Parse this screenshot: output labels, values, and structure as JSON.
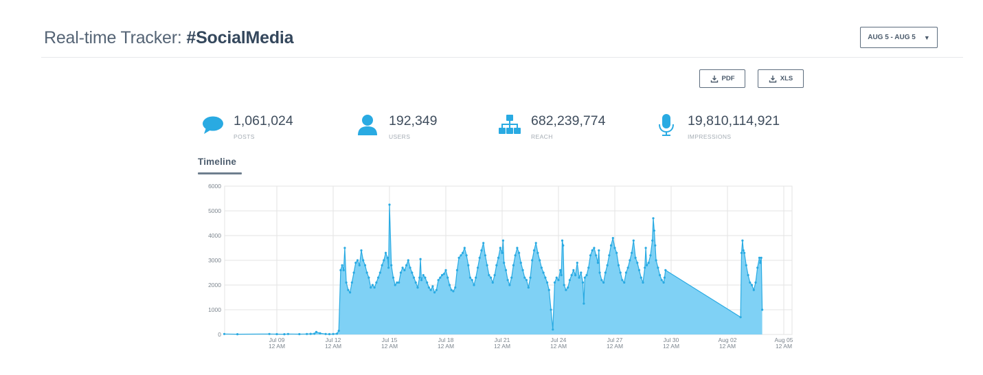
{
  "header": {
    "title_prefix": "Real-time Tracker:",
    "title_hashtag": "#SocialMedia",
    "date_range": "AUG 5 - AUG 5",
    "date_caret": "▼"
  },
  "toolbar": {
    "pdf_label": "PDF",
    "xls_label": "XLS"
  },
  "stats": [
    {
      "icon": "speech-bubble-icon",
      "value": "1,061,024",
      "label": "POSTS"
    },
    {
      "icon": "user-icon",
      "value": "192,349",
      "label": "USERS"
    },
    {
      "icon": "sitemap-icon",
      "value": "682,239,774",
      "label": "REACH"
    },
    {
      "icon": "microphone-icon",
      "value": "19,810,114,921",
      "label": "IMPRESSIONS"
    }
  ],
  "tabs": [
    {
      "label": "Timeline",
      "active": true
    }
  ],
  "colors": {
    "accent": "#29aae2",
    "fill": "#7fd1f5",
    "grid": "#e3e3e3",
    "text_dark": "#34475c"
  },
  "chart_data": {
    "type": "area",
    "title": "Timeline",
    "xlabel": "",
    "ylabel": "",
    "ylim": [
      0,
      6000
    ],
    "yticks": [
      0,
      1000,
      2000,
      3000,
      4000,
      5000,
      6000
    ],
    "xticks": [
      {
        "label": "Jul 09",
        "sub": "12 AM",
        "day": 3
      },
      {
        "label": "Jul 12",
        "sub": "12 AM",
        "day": 6
      },
      {
        "label": "Jul 15",
        "sub": "12 AM",
        "day": 9
      },
      {
        "label": "Jul 18",
        "sub": "12 AM",
        "day": 12
      },
      {
        "label": "Jul 21",
        "sub": "12 AM",
        "day": 15
      },
      {
        "label": "Jul 24",
        "sub": "12 AM",
        "day": 18
      },
      {
        "label": "Jul 27",
        "sub": "12 AM",
        "day": 21
      },
      {
        "label": "Jul 30",
        "sub": "12 AM",
        "day": 24
      },
      {
        "label": "Aug 02",
        "sub": "12 AM",
        "day": 27
      },
      {
        "label": "Aug 05",
        "sub": "12 AM",
        "day": 30
      }
    ],
    "x_unit": "days since Jul 06 12 AM",
    "grid": true,
    "legend": "none",
    "series": [
      {
        "name": "Posts",
        "points": [
          [
            0.2,
            20
          ],
          [
            0.9,
            10
          ],
          [
            2.6,
            20
          ],
          [
            3.0,
            15
          ],
          [
            3.4,
            10
          ],
          [
            3.6,
            20
          ],
          [
            4.2,
            15
          ],
          [
            4.6,
            20
          ],
          [
            4.8,
            25
          ],
          [
            5.0,
            30
          ],
          [
            5.1,
            100
          ],
          [
            5.3,
            50
          ],
          [
            5.6,
            20
          ],
          [
            5.8,
            15
          ],
          [
            6.0,
            20
          ],
          [
            6.2,
            30
          ],
          [
            6.3,
            150
          ],
          [
            6.4,
            2600
          ],
          [
            6.48,
            2800
          ],
          [
            6.56,
            2600
          ],
          [
            6.62,
            3500
          ],
          [
            6.7,
            2100
          ],
          [
            6.8,
            1800
          ],
          [
            6.9,
            1700
          ],
          [
            7.0,
            2100
          ],
          [
            7.1,
            2500
          ],
          [
            7.2,
            2900
          ],
          [
            7.3,
            3000
          ],
          [
            7.4,
            2800
          ],
          [
            7.5,
            3400
          ],
          [
            7.6,
            3000
          ],
          [
            7.7,
            2800
          ],
          [
            7.8,
            2500
          ],
          [
            7.9,
            2300
          ],
          [
            8.0,
            1900
          ],
          [
            8.1,
            2000
          ],
          [
            8.2,
            1900
          ],
          [
            8.3,
            2100
          ],
          [
            8.4,
            2300
          ],
          [
            8.5,
            2500
          ],
          [
            8.6,
            2800
          ],
          [
            8.7,
            3000
          ],
          [
            8.8,
            3300
          ],
          [
            8.9,
            3100
          ],
          [
            8.95,
            2700
          ],
          [
            9.0,
            5250
          ],
          [
            9.1,
            2800
          ],
          [
            9.2,
            2300
          ],
          [
            9.3,
            2000
          ],
          [
            9.4,
            2100
          ],
          [
            9.5,
            2100
          ],
          [
            9.6,
            2500
          ],
          [
            9.7,
            2700
          ],
          [
            9.8,
            2600
          ],
          [
            9.9,
            2800
          ],
          [
            10.0,
            3000
          ],
          [
            10.1,
            2700
          ],
          [
            10.2,
            2500
          ],
          [
            10.3,
            2300
          ],
          [
            10.4,
            2100
          ],
          [
            10.5,
            1900
          ],
          [
            10.6,
            2300
          ],
          [
            10.65,
            3050
          ],
          [
            10.7,
            2200
          ],
          [
            10.8,
            2400
          ],
          [
            10.9,
            2300
          ],
          [
            11.0,
            2100
          ],
          [
            11.1,
            1900
          ],
          [
            11.2,
            1800
          ],
          [
            11.3,
            1950
          ],
          [
            11.4,
            1700
          ],
          [
            11.5,
            1800
          ],
          [
            11.6,
            2200
          ],
          [
            11.7,
            2300
          ],
          [
            11.8,
            2400
          ],
          [
            11.9,
            2450
          ],
          [
            12.0,
            2600
          ],
          [
            12.1,
            2300
          ],
          [
            12.2,
            2000
          ],
          [
            12.3,
            1800
          ],
          [
            12.4,
            1750
          ],
          [
            12.5,
            1900
          ],
          [
            12.6,
            2600
          ],
          [
            12.7,
            3100
          ],
          [
            12.8,
            3200
          ],
          [
            12.9,
            3300
          ],
          [
            13.0,
            3500
          ],
          [
            13.1,
            3200
          ],
          [
            13.2,
            2800
          ],
          [
            13.3,
            2300
          ],
          [
            13.4,
            2200
          ],
          [
            13.5,
            2000
          ],
          [
            13.6,
            2300
          ],
          [
            13.7,
            2700
          ],
          [
            13.8,
            3100
          ],
          [
            13.9,
            3400
          ],
          [
            14.0,
            3700
          ],
          [
            14.1,
            3200
          ],
          [
            14.2,
            2800
          ],
          [
            14.3,
            2400
          ],
          [
            14.4,
            2300
          ],
          [
            14.5,
            2100
          ],
          [
            14.6,
            2400
          ],
          [
            14.7,
            2800
          ],
          [
            14.8,
            3100
          ],
          [
            14.9,
            3500
          ],
          [
            15.0,
            3300
          ],
          [
            15.05,
            3800
          ],
          [
            15.1,
            2900
          ],
          [
            15.2,
            2600
          ],
          [
            15.3,
            2200
          ],
          [
            15.4,
            2000
          ],
          [
            15.5,
            2300
          ],
          [
            15.6,
            2800
          ],
          [
            15.7,
            3200
          ],
          [
            15.8,
            3500
          ],
          [
            15.9,
            3300
          ],
          [
            16.0,
            2900
          ],
          [
            16.1,
            2600
          ],
          [
            16.2,
            2300
          ],
          [
            16.3,
            2200
          ],
          [
            16.4,
            1900
          ],
          [
            16.5,
            2300
          ],
          [
            16.6,
            3000
          ],
          [
            16.7,
            3400
          ],
          [
            16.8,
            3700
          ],
          [
            16.9,
            3300
          ],
          [
            17.0,
            3000
          ],
          [
            17.1,
            2700
          ],
          [
            17.2,
            2500
          ],
          [
            17.3,
            2300
          ],
          [
            17.4,
            2100
          ],
          [
            17.5,
            1800
          ],
          [
            17.6,
            1000
          ],
          [
            17.7,
            200
          ],
          [
            17.8,
            2100
          ],
          [
            17.9,
            2300
          ],
          [
            18.0,
            2200
          ],
          [
            18.1,
            2600
          ],
          [
            18.15,
            2400
          ],
          [
            18.2,
            3800
          ],
          [
            18.25,
            3600
          ],
          [
            18.3,
            2000
          ],
          [
            18.4,
            1800
          ],
          [
            18.5,
            1900
          ],
          [
            18.6,
            2200
          ],
          [
            18.7,
            2400
          ],
          [
            18.8,
            2600
          ],
          [
            18.9,
            2400
          ],
          [
            19.0,
            2900
          ],
          [
            19.1,
            2300
          ],
          [
            19.2,
            2500
          ],
          [
            19.3,
            2100
          ],
          [
            19.35,
            1250
          ],
          [
            19.4,
            2300
          ],
          [
            19.5,
            2400
          ],
          [
            19.6,
            2700
          ],
          [
            19.7,
            3200
          ],
          [
            19.8,
            3400
          ],
          [
            19.9,
            3500
          ],
          [
            20.0,
            3200
          ],
          [
            20.1,
            2900
          ],
          [
            20.15,
            3400
          ],
          [
            20.2,
            2500
          ],
          [
            20.3,
            2200
          ],
          [
            20.4,
            2100
          ],
          [
            20.5,
            2500
          ],
          [
            20.6,
            2800
          ],
          [
            20.7,
            3200
          ],
          [
            20.8,
            3600
          ],
          [
            20.9,
            3900
          ],
          [
            21.0,
            3500
          ],
          [
            21.1,
            3300
          ],
          [
            21.2,
            2800
          ],
          [
            21.3,
            2500
          ],
          [
            21.4,
            2200
          ],
          [
            21.5,
            2100
          ],
          [
            21.6,
            2500
          ],
          [
            21.7,
            2700
          ],
          [
            21.8,
            3000
          ],
          [
            21.9,
            3300
          ],
          [
            22.0,
            3800
          ],
          [
            22.1,
            3100
          ],
          [
            22.2,
            2900
          ],
          [
            22.3,
            2600
          ],
          [
            22.4,
            2300
          ],
          [
            22.5,
            2100
          ],
          [
            22.6,
            2700
          ],
          [
            22.65,
            3500
          ],
          [
            22.7,
            2800
          ],
          [
            22.8,
            2900
          ],
          [
            22.9,
            3200
          ],
          [
            23.0,
            3800
          ],
          [
            23.05,
            4700
          ],
          [
            23.1,
            4200
          ],
          [
            23.15,
            3600
          ],
          [
            23.2,
            3000
          ],
          [
            23.3,
            2700
          ],
          [
            23.4,
            2400
          ],
          [
            23.5,
            2200
          ],
          [
            23.6,
            2100
          ],
          [
            23.65,
            2300
          ],
          [
            23.7,
            2600
          ],
          [
            27.7,
            700
          ],
          [
            27.75,
            3300
          ],
          [
            27.8,
            3800
          ],
          [
            27.85,
            3400
          ],
          [
            27.9,
            3300
          ],
          [
            28.0,
            2800
          ],
          [
            28.1,
            2400
          ],
          [
            28.2,
            2100
          ],
          [
            28.3,
            2000
          ],
          [
            28.4,
            1800
          ],
          [
            28.5,
            2100
          ],
          [
            28.6,
            2700
          ],
          [
            28.7,
            3100
          ],
          [
            28.75,
            2900
          ],
          [
            28.8,
            3100
          ],
          [
            28.85,
            1000
          ]
        ]
      }
    ]
  }
}
